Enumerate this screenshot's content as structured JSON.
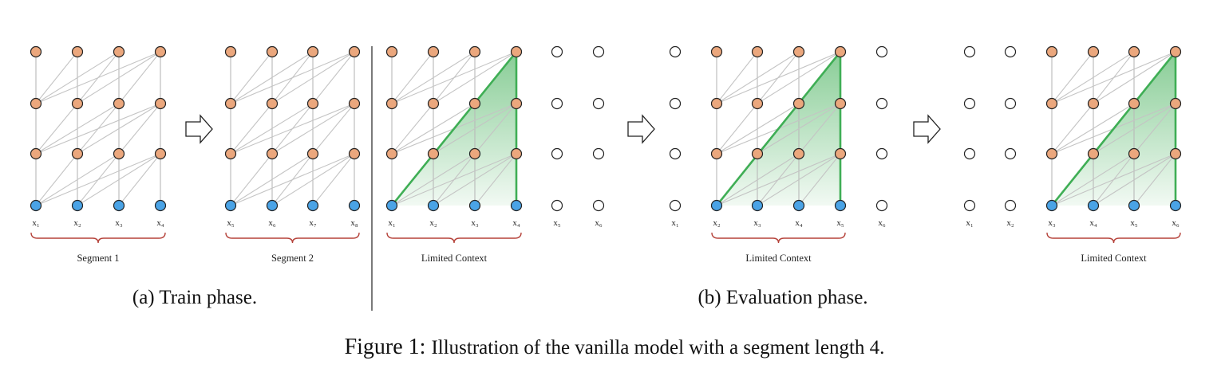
{
  "figure": {
    "caption_label": "Figure 1:",
    "caption_text": "Illustration of the vanilla model with a segment length 4."
  },
  "phases": [
    {
      "id": "train",
      "label": "(a) Train phase."
    },
    {
      "id": "eval",
      "label": "(b) Evaluation phase."
    }
  ],
  "panels": [
    {
      "id": "train-seg1",
      "tokens": [
        "x1",
        "x2",
        "x3",
        "x4"
      ],
      "brace_label": "Segment 1"
    },
    {
      "id": "train-seg2",
      "tokens": [
        "x5",
        "x6",
        "x7",
        "x8"
      ],
      "brace_label": "Segment 2"
    },
    {
      "id": "eval-step1",
      "tokens": [
        "x1",
        "x2",
        "x3",
        "x4",
        "x5",
        "x6"
      ],
      "window_start": 0,
      "brace_label": "Limited Context"
    },
    {
      "id": "eval-step2",
      "tokens": [
        "x1",
        "x2",
        "x3",
        "x4",
        "x5",
        "x6"
      ],
      "window_start": 1,
      "brace_label": "Limited Context"
    },
    {
      "id": "eval-step3",
      "tokens": [
        "x1",
        "x2",
        "x3",
        "x4",
        "x5",
        "x6"
      ],
      "window_start": 2,
      "brace_label": "Limited Context"
    }
  ],
  "colors": {
    "hidden_node": "#eba77d",
    "input_node": "#4aa3e6",
    "empty_node": "#ffffff",
    "context_triangle": "#3fae55",
    "brace": "#b5423a",
    "connection": "#c4c4c4"
  }
}
